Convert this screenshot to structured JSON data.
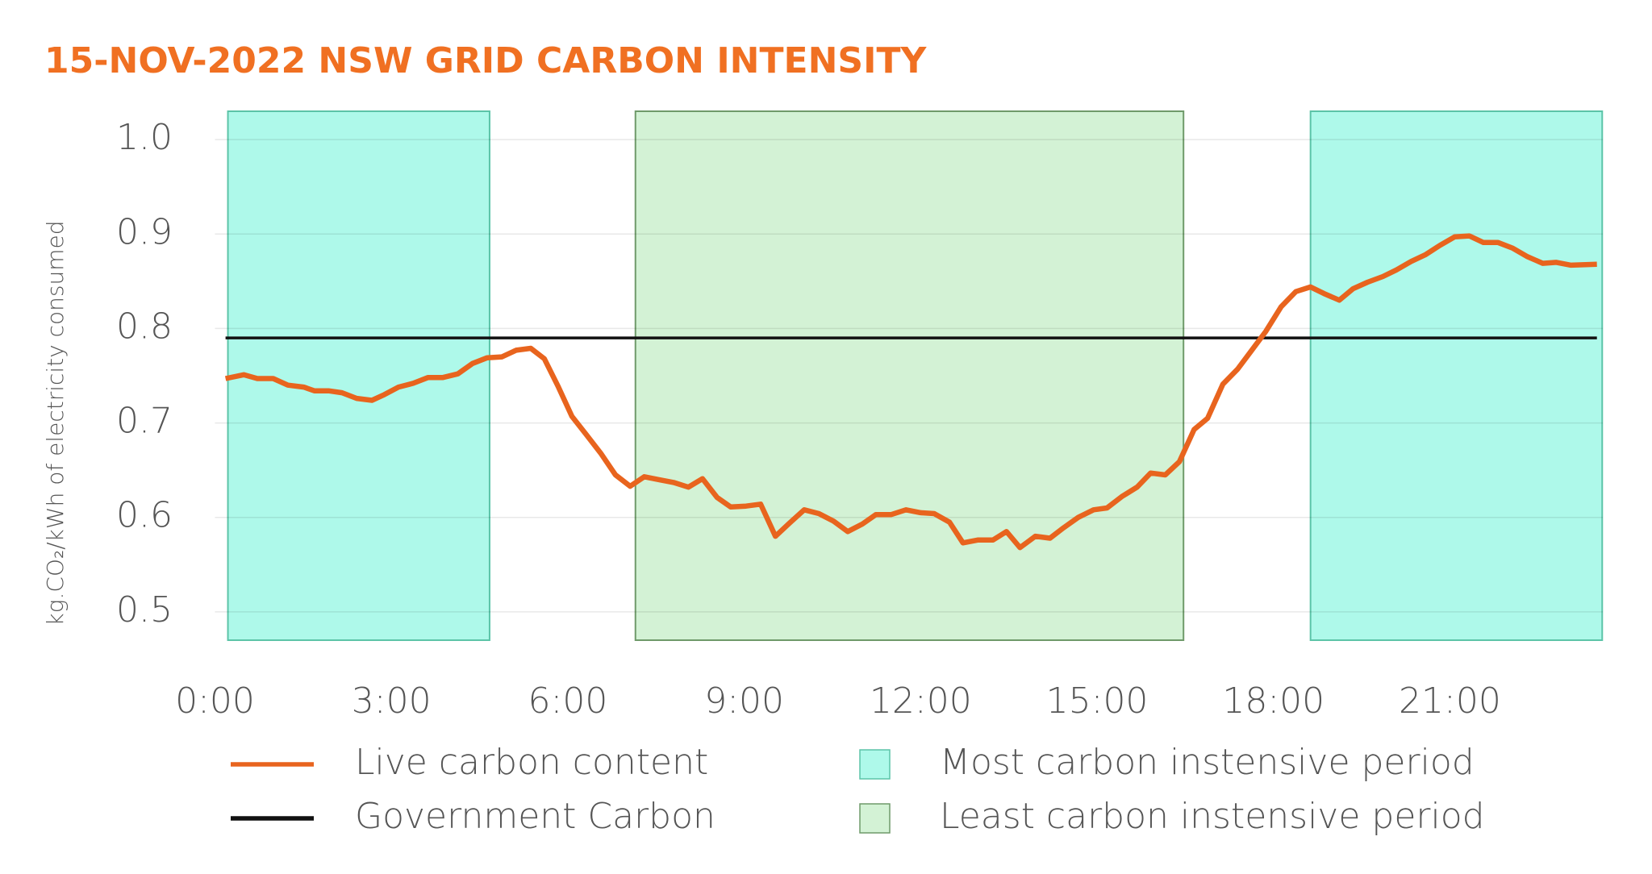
{
  "chart_data": {
    "type": "line",
    "title": "15-NOV-2022 NSW GRID CARBON INTENSITY",
    "y_label": "kg.CO₂/kWh of electricity consumed",
    "xlim": [
      0,
      23.6
    ],
    "xticks": [
      {
        "value": 0,
        "label": "0:00"
      },
      {
        "value": 3,
        "label": "3:00"
      },
      {
        "value": 6,
        "label": "6:00"
      },
      {
        "value": 9,
        "label": "9:00"
      },
      {
        "value": 12,
        "label": "12:00"
      },
      {
        "value": 15,
        "label": "15:00"
      },
      {
        "value": 18,
        "label": "18:00"
      },
      {
        "value": 21,
        "label": "21:00"
      }
    ],
    "ylim": [
      0.47,
      1.03
    ],
    "yticks": [
      {
        "value": 0.5,
        "label": "0.5"
      },
      {
        "value": 0.6,
        "label": "0.6"
      },
      {
        "value": 0.7,
        "label": "0.7"
      },
      {
        "value": 0.8,
        "label": "0.8"
      },
      {
        "value": 0.9,
        "label": "0.9"
      },
      {
        "value": 1.0,
        "label": "1.0"
      }
    ],
    "grid": true,
    "series": [
      {
        "name": "Live carbon content",
        "color": "#e8641e",
        "x": [
          0.18,
          0.49,
          0.72,
          0.99,
          1.24,
          1.51,
          1.69,
          1.93,
          2.16,
          2.41,
          2.67,
          2.88,
          3.12,
          3.37,
          3.62,
          3.87,
          4.13,
          4.38,
          4.63,
          4.88,
          5.12,
          5.37,
          5.6,
          5.84,
          6.07,
          6.31,
          6.56,
          6.81,
          7.06,
          7.3,
          7.55,
          7.8,
          8.05,
          8.29,
          8.54,
          8.77,
          9.03,
          9.28,
          9.53,
          9.77,
          10.02,
          10.27,
          10.52,
          10.76,
          11.01,
          11.24,
          11.5,
          11.75,
          12.0,
          12.23,
          12.49,
          12.72,
          12.97,
          13.23,
          13.46,
          13.69,
          13.95,
          14.2,
          14.43,
          14.68,
          14.94,
          15.17,
          15.42,
          15.68,
          15.91,
          16.16,
          16.4,
          16.65,
          16.88,
          17.14,
          17.39,
          17.62,
          17.87,
          18.13,
          18.38,
          18.63,
          18.86,
          19.12,
          19.35,
          19.6,
          19.86,
          20.09,
          20.34,
          20.58,
          20.83,
          21.08,
          21.33,
          21.57,
          21.82,
          22.07,
          22.32,
          22.58,
          22.81,
          23.06,
          23.5
        ],
        "values": [
          0.747,
          0.751,
          0.747,
          0.747,
          0.74,
          0.738,
          0.734,
          0.734,
          0.732,
          0.726,
          0.724,
          0.73,
          0.738,
          0.742,
          0.748,
          0.748,
          0.752,
          0.763,
          0.769,
          0.77,
          0.777,
          0.779,
          0.768,
          0.738,
          0.707,
          0.688,
          0.668,
          0.645,
          0.633,
          0.643,
          0.64,
          0.637,
          0.632,
          0.641,
          0.621,
          0.611,
          0.612,
          0.614,
          0.58,
          0.594,
          0.608,
          0.604,
          0.596,
          0.585,
          0.593,
          0.603,
          0.603,
          0.608,
          0.605,
          0.604,
          0.595,
          0.573,
          0.576,
          0.576,
          0.585,
          0.568,
          0.58,
          0.578,
          0.589,
          0.6,
          0.608,
          0.61,
          0.622,
          0.632,
          0.647,
          0.645,
          0.659,
          0.693,
          0.705,
          0.741,
          0.757,
          0.776,
          0.797,
          0.823,
          0.839,
          0.844,
          0.837,
          0.83,
          0.842,
          0.849,
          0.855,
          0.862,
          0.871,
          0.878,
          0.888,
          0.897,
          0.898,
          0.891,
          0.891,
          0.885,
          0.876,
          0.869,
          0.87,
          0.867,
          0.868
        ]
      },
      {
        "name": "Government Carbon",
        "color": "#111111",
        "x": [
          0.18,
          23.5
        ],
        "values": [
          0.79,
          0.79
        ]
      }
    ],
    "regions": [
      {
        "name": "Most carbon instensive period",
        "color": "#aef9ea",
        "edge": "#5cc4a8",
        "spans": [
          [
            0.22,
            4.67
          ],
          [
            18.63,
            23.59
          ]
        ]
      },
      {
        "name": "Least carbon instensive period",
        "color": "#d3f2d5",
        "edge": "#6f9a6a",
        "spans": [
          [
            7.15,
            16.47
          ]
        ]
      }
    ]
  }
}
